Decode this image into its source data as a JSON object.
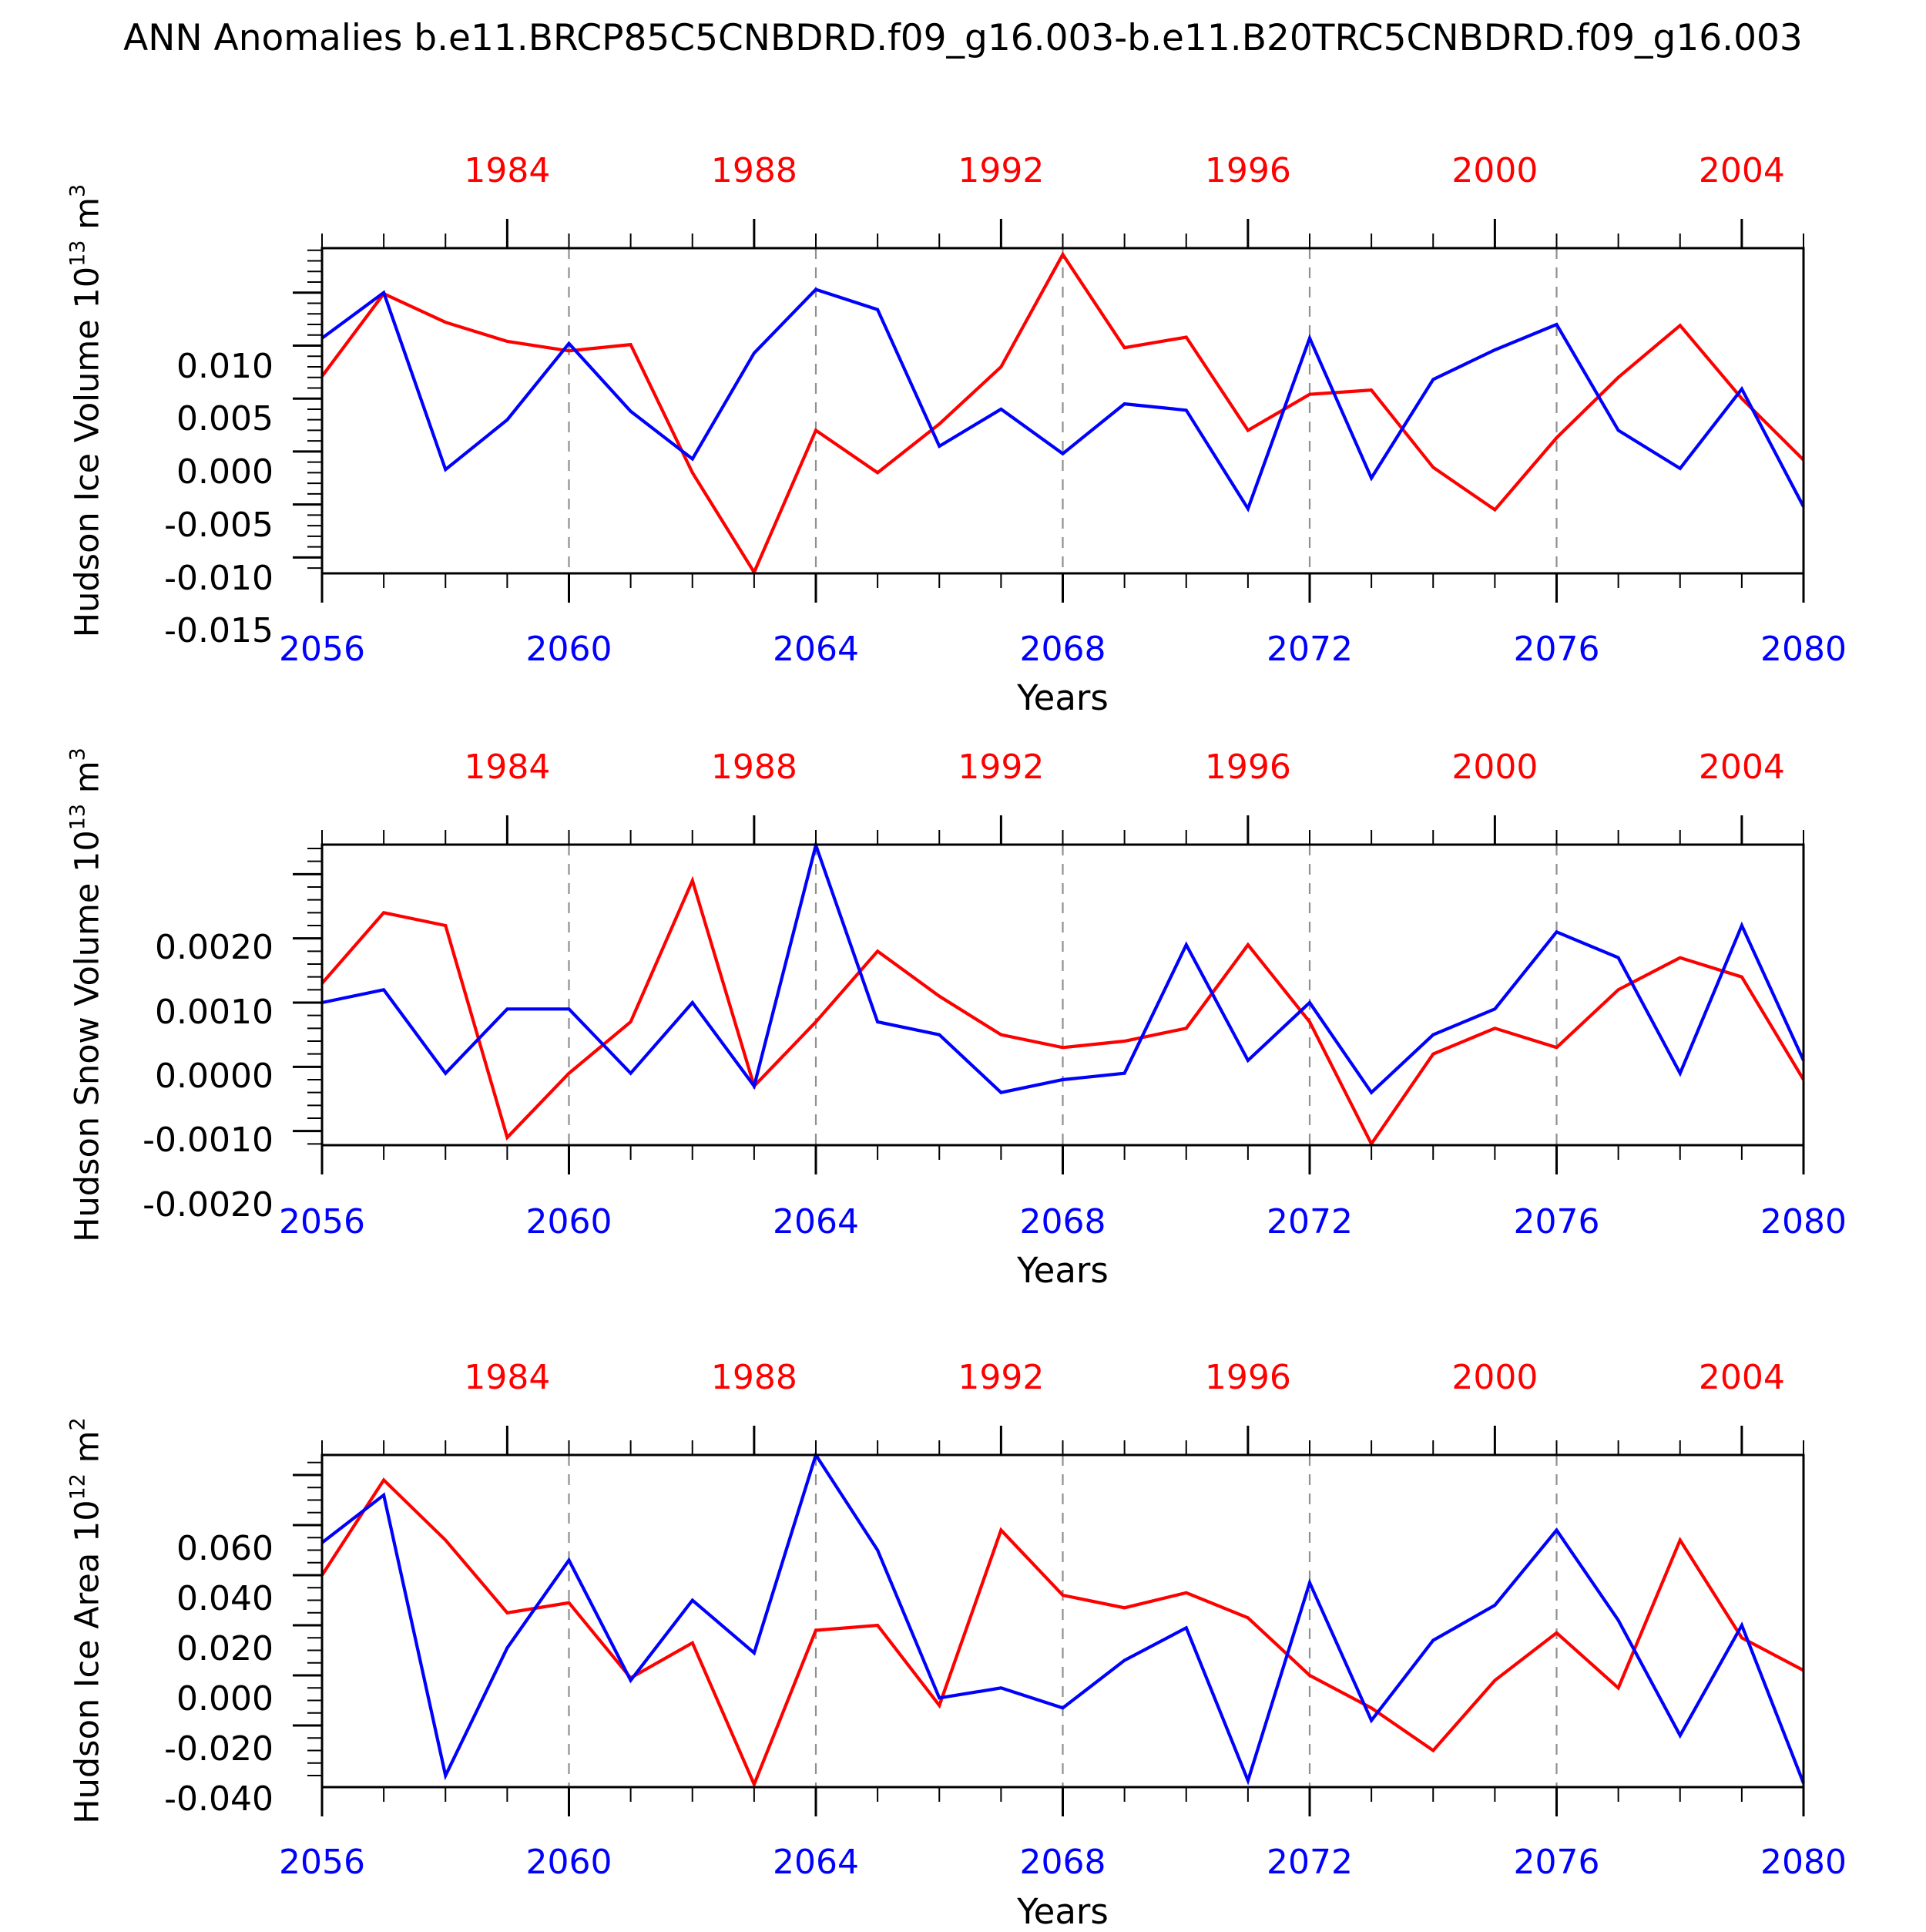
{
  "title": "ANN Anomalies b.e11.BRCP85C5CNBDRD.f09_g16.003-b.e11.B20TRC5CNBDRD.f09_g16.003",
  "legend": {
    "red_label": "b.e11.B20TRC5CNBDRD.f09_g16.003",
    "blue_label": "b.e11.BRCP85C5CNBDRD.f09_g16.003"
  },
  "colors": {
    "red_series": "#ff0000",
    "blue_series": "#0000ff",
    "grid": "#909090",
    "axis": "#000000"
  },
  "x_axis": {
    "caption": "Years",
    "bottom_tick_labels": [
      "2056",
      "2060",
      "2064",
      "2068",
      "2072",
      "2076",
      "2080"
    ],
    "top_tick_labels": [
      "1984",
      "1988",
      "1992",
      "1996",
      "2000",
      "2004"
    ],
    "bottom_range": [
      2056,
      2080
    ],
    "top_range": [
      1981,
      2005
    ]
  },
  "chart_data": [
    {
      "type": "line",
      "ylabel": {
        "text_before_sup": "Hudson Ice Volume 10",
        "sup1": "13",
        "text_mid": " m",
        "sup2": "3"
      },
      "x": [
        2056,
        2057,
        2058,
        2059,
        2060,
        2061,
        2062,
        2063,
        2064,
        2065,
        2066,
        2067,
        2068,
        2069,
        2070,
        2071,
        2072,
        2073,
        2074,
        2075,
        2076,
        2077,
        2078,
        2079,
        2080
      ],
      "ylim": [
        -0.0165,
        0.0142
      ],
      "ytick_values": [
        0.01,
        0.005,
        0.0,
        -0.005,
        -0.01,
        -0.015
      ],
      "ytick_labels": [
        "0.010",
        "0.005",
        "0.000",
        "-0.005",
        "-0.010",
        "-0.015"
      ],
      "minor_step": 0.001,
      "series": [
        {
          "name": "b.e11.BRCP85C5CNBDRD.f09_g16.003",
          "color_key": "blue_series",
          "values": [
            0.0057,
            0.01,
            -0.0067,
            -0.002,
            0.0052,
            -0.0012,
            -0.0057,
            0.0043,
            0.0103,
            0.0084,
            -0.0045,
            -0.001,
            -0.0052,
            -0.0005,
            -0.0011,
            -0.0104,
            0.0057,
            -0.0075,
            0.0018,
            0.0046,
            0.007,
            -0.003,
            -0.0066,
            0.0009,
            -0.0102
          ]
        },
        {
          "name": "b.e11.B20TRC5CNBDRD.f09_g16.003",
          "color_key": "red_series",
          "values": [
            0.0021,
            0.0099,
            0.0072,
            0.0054,
            0.0045,
            0.0051,
            -0.007,
            -0.0164,
            -0.003,
            -0.007,
            -0.0024,
            0.003,
            0.0136,
            0.0048,
            0.0058,
            -0.003,
            0.0004,
            0.0008,
            -0.0065,
            -0.0105,
            -0.0037,
            0.002,
            0.0069,
            0.0,
            -0.0058
          ]
        }
      ]
    },
    {
      "type": "line",
      "ylabel": {
        "text_before_sup": "Hudson Snow Volume 10",
        "sup1": "13",
        "text_mid": " m",
        "sup2": "3"
      },
      "x": [
        2056,
        2057,
        2058,
        2059,
        2060,
        2061,
        2062,
        2063,
        2064,
        2065,
        2066,
        2067,
        2068,
        2069,
        2070,
        2071,
        2072,
        2073,
        2074,
        2075,
        2076,
        2077,
        2078,
        2079,
        2080
      ],
      "ylim": [
        -0.00222,
        0.00246
      ],
      "ytick_values": [
        0.002,
        0.001,
        0.0,
        -0.001,
        -0.002
      ],
      "ytick_labels": [
        "0.0020",
        "0.0010",
        "0.0000",
        "-0.0010",
        "-0.0020"
      ],
      "minor_step": 0.0002,
      "series": [
        {
          "name": "b.e11.BRCP85C5CNBDRD.f09_g16.003",
          "color_key": "blue_series",
          "values": [
            0.0,
            0.0002,
            -0.0011,
            -0.0001,
            -0.0001,
            -0.0011,
            0.0,
            -0.0013,
            0.00245,
            -0.0003,
            -0.0005,
            -0.0014,
            -0.0012,
            -0.0011,
            0.0009,
            -0.0009,
            0.0,
            -0.0014,
            -0.0005,
            -0.0001,
            0.0011,
            0.0007,
            -0.0011,
            0.0012,
            -0.0009
          ]
        },
        {
          "name": "b.e11.B20TRC5CNBDRD.f09_g16.003",
          "color_key": "red_series",
          "values": [
            0.0003,
            0.0014,
            0.0012,
            -0.0021,
            -0.0011,
            -0.0003,
            0.0019,
            -0.0013,
            -0.0003,
            0.0008,
            0.0001,
            -0.0005,
            -0.0007,
            -0.0006,
            -0.0004,
            0.0009,
            -0.0003,
            -0.0022,
            -0.0008,
            -0.0004,
            -0.0007,
            0.0002,
            0.0007,
            0.0004,
            -0.0012
          ]
        }
      ]
    },
    {
      "type": "line",
      "ylabel": {
        "text_before_sup": "Hudson Ice Area 10",
        "sup1": "12",
        "text_mid": " m",
        "sup2": "2"
      },
      "x": [
        2056,
        2057,
        2058,
        2059,
        2060,
        2061,
        2062,
        2063,
        2064,
        2065,
        2066,
        2067,
        2068,
        2069,
        2070,
        2071,
        2072,
        2073,
        2074,
        2075,
        2076,
        2077,
        2078,
        2079,
        2080
      ],
      "ylim": [
        -0.0646,
        0.068
      ],
      "ytick_values": [
        0.06,
        0.04,
        0.02,
        0.0,
        -0.02,
        -0.04
      ],
      "ytick_labels": [
        "0.060",
        "0.040",
        "0.020",
        "0.000",
        "-0.020",
        "-0.040"
      ],
      "minor_step": 0.005,
      "series": [
        {
          "name": "b.e11.BRCP85C5CNBDRD.f09_g16.003",
          "color_key": "blue_series",
          "values": [
            0.033,
            0.052,
            -0.06,
            -0.009,
            0.026,
            -0.022,
            0.01,
            -0.011,
            0.068,
            0.03,
            -0.029,
            -0.025,
            -0.033,
            -0.014,
            -0.001,
            -0.062,
            0.017,
            -0.038,
            -0.006,
            0.008,
            0.038,
            0.002,
            -0.044,
            0.0,
            -0.063
          ]
        },
        {
          "name": "b.e11.B20TRC5CNBDRD.f09_g16.003",
          "color_key": "red_series",
          "values": [
            0.02,
            0.058,
            0.034,
            0.005,
            0.009,
            -0.021,
            -0.007,
            -0.0635,
            -0.002,
            0.0,
            -0.032,
            0.038,
            0.012,
            0.007,
            0.013,
            0.003,
            -0.02,
            -0.033,
            -0.05,
            -0.022,
            -0.003,
            -0.025,
            0.034,
            -0.005,
            -0.018
          ]
        }
      ]
    }
  ]
}
